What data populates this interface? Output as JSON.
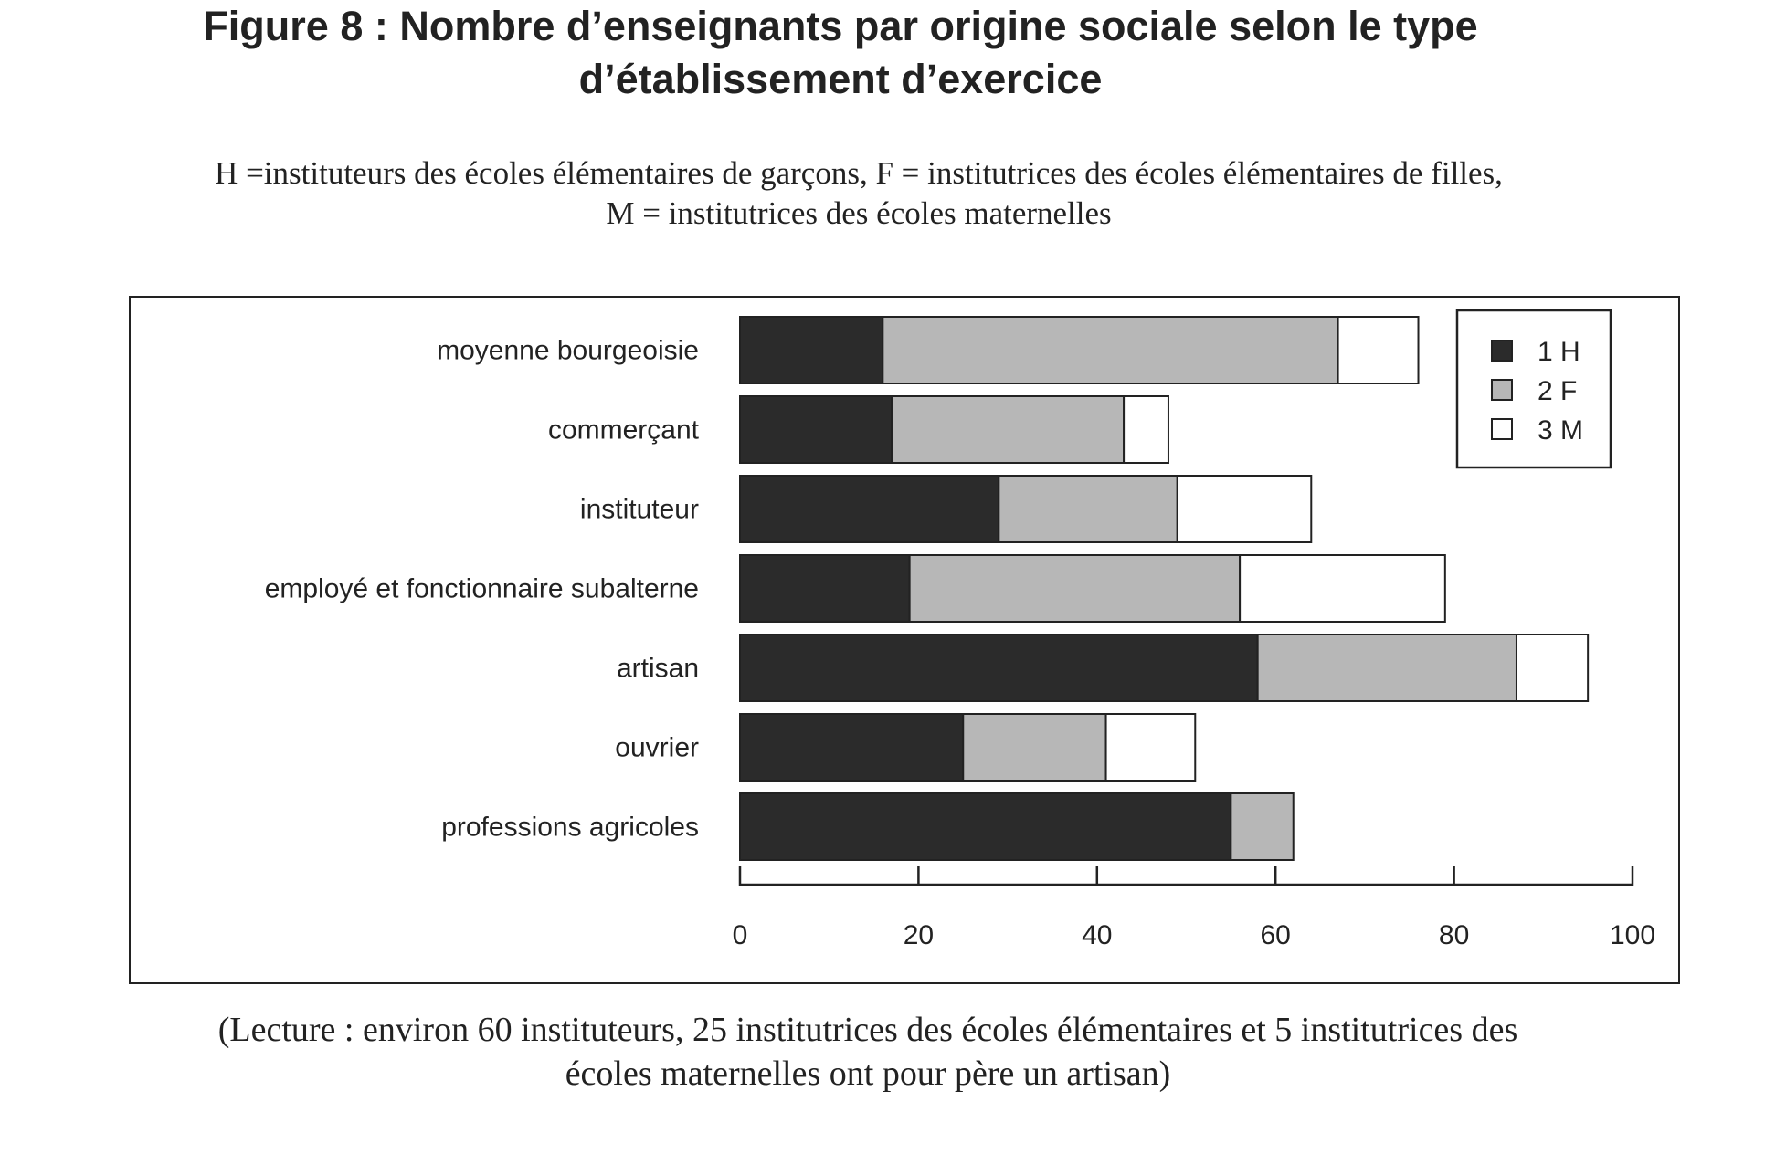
{
  "title": {
    "line1": "Figure 8 : Nombre d’enseignants par origine sociale selon le type",
    "line2": "d’établissement d’exercice"
  },
  "subtitle": {
    "line1": "H =instituteurs des écoles élémentaires de  garçons, F = institutrices des  écoles élémentaires de filles,",
    "line2": "M = institutrices des écoles maternelles"
  },
  "caption": {
    "line1": "(Lecture : environ 60 instituteurs, 25 institutrices des écoles élémentaires et 5 institutrices des",
    "line2": "écoles maternelles ont pour père un artisan)"
  },
  "colors": {
    "H": "#2b2b2b",
    "F": "#b7b7b7",
    "M": "#ffffff",
    "stroke": "#222222"
  },
  "chart_data": {
    "type": "bar",
    "orientation": "horizontal",
    "stacked": true,
    "categories": [
      "moyenne bourgeoisie",
      "commerçant",
      "instituteur",
      "employé et fonctionnaire subalterne",
      "artisan",
      "ouvrier",
      "professions agricoles"
    ],
    "series": [
      {
        "name": "1 H",
        "key": "H",
        "values": [
          16,
          17,
          29,
          19,
          58,
          25,
          55
        ]
      },
      {
        "name": "2 F",
        "key": "F",
        "values": [
          51,
          26,
          20,
          37,
          29,
          16,
          7
        ]
      },
      {
        "name": "3 M",
        "key": "M",
        "values": [
          9,
          5,
          15,
          23,
          8,
          10,
          0
        ]
      }
    ],
    "xlim": [
      0,
      100
    ],
    "xticks": [
      "0",
      "20",
      "40",
      "60",
      "80",
      "100"
    ],
    "legend": [
      "1 H",
      "2 F",
      "3 M"
    ],
    "legend_position": "top-right",
    "grid": false,
    "xlabel": "",
    "ylabel": ""
  }
}
